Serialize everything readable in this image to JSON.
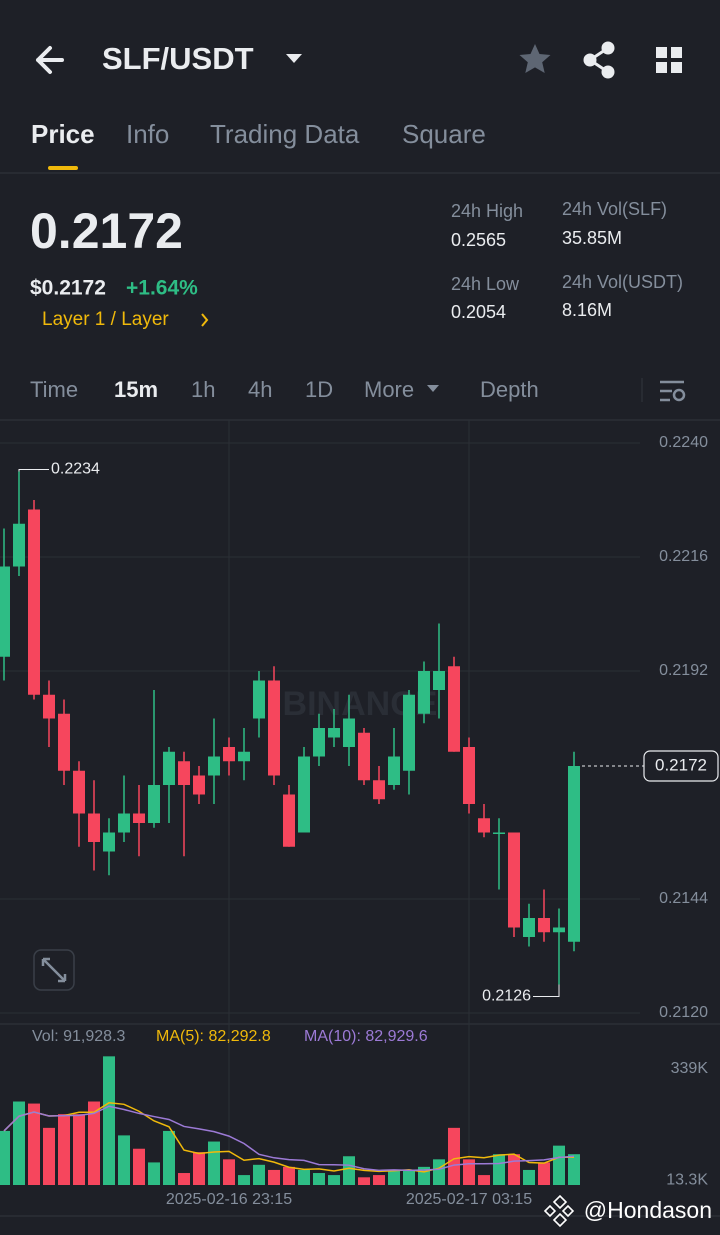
{
  "header": {
    "pair": "SLF/USDT"
  },
  "tabs": [
    "Price",
    "Info",
    "Trading Data",
    "Square"
  ],
  "ticker": {
    "last": "0.2172",
    "usd": "$0.2172",
    "change": "+1.64%",
    "tag": "Layer 1 / Layer",
    "stats": [
      {
        "label": "24h High",
        "value": "0.2565"
      },
      {
        "label": "24h Vol(SLF)",
        "value": "35.85M"
      },
      {
        "label": "24h Low",
        "value": "0.2054"
      },
      {
        "label": "24h Vol(USDT)",
        "value": "8.16M"
      }
    ]
  },
  "timeframes": [
    "Time",
    "15m",
    "1h",
    "4h",
    "1D",
    "More",
    "Depth"
  ],
  "chart_data": {
    "type": "candlestick",
    "categories": [
      null,
      null,
      null,
      null,
      null,
      null,
      null,
      null,
      null,
      null,
      null,
      null,
      null,
      null,
      null,
      "2025-02-16 23:15",
      null,
      null,
      null,
      null,
      null,
      null,
      null,
      null,
      null,
      null,
      null,
      null,
      null,
      null,
      null,
      "2025-02-17 03:15",
      null,
      null,
      null,
      null,
      null,
      null,
      null
    ],
    "open": [
      0.2195,
      0.2214,
      0.2226,
      0.2187,
      0.2183,
      0.2171,
      0.2162,
      0.2154,
      0.2158,
      0.2162,
      0.216,
      0.2168,
      0.2173,
      0.217,
      0.217,
      0.2176,
      0.2173,
      0.2182,
      0.219,
      0.2166,
      0.2158,
      0.2174,
      0.2178,
      0.2176,
      0.2179,
      0.2169,
      0.2168,
      0.2171,
      0.2183,
      0.2188,
      0.2193,
      0.2176,
      0.2161,
      0.2158,
      0.2158,
      0.2136,
      0.214,
      0.2137,
      0.2135
    ],
    "high": [
      0.2222,
      0.2234,
      0.2228,
      0.219,
      0.2186,
      0.2173,
      0.2169,
      0.2161,
      0.217,
      0.2168,
      0.2188,
      0.2176,
      0.2175,
      0.2172,
      0.2182,
      0.2178,
      0.218,
      0.2192,
      0.2193,
      0.2168,
      0.2176,
      0.2183,
      0.2184,
      0.2187,
      0.218,
      0.2172,
      0.218,
      0.2188,
      0.2194,
      0.2202,
      0.2195,
      0.2178,
      0.2164,
      0.2161,
      0.2158,
      0.2143,
      0.2146,
      0.2142,
      0.2175
    ],
    "low": [
      0.219,
      0.2212,
      0.2186,
      0.2176,
      0.2168,
      0.2155,
      0.215,
      0.2149,
      0.2156,
      0.2153,
      0.2159,
      0.216,
      0.2153,
      0.2164,
      0.2164,
      0.217,
      0.2169,
      0.2178,
      0.2168,
      0.2155,
      0.2158,
      0.2172,
      0.2176,
      0.2172,
      0.2168,
      0.2164,
      0.2167,
      0.2166,
      0.2181,
      0.2182,
      0.2175,
      0.2162,
      0.2157,
      0.2146,
      0.2136,
      0.2134,
      0.2135,
      0.2126,
      0.2133
    ],
    "close": [
      0.2214,
      0.2223,
      0.2187,
      0.2182,
      0.2171,
      0.2162,
      0.2156,
      0.2158,
      0.2162,
      0.216,
      0.2168,
      0.2175,
      0.2168,
      0.2166,
      0.2174,
      0.2173,
      0.2175,
      0.219,
      0.217,
      0.2155,
      0.2174,
      0.218,
      0.218,
      0.2182,
      0.2169,
      0.2165,
      0.2174,
      0.2187,
      0.2192,
      0.2192,
      0.2175,
      0.2164,
      0.2158,
      0.2158,
      0.2138,
      0.214,
      0.2137,
      0.2138,
      0.2172
    ],
    "up_color": "#2ebd85",
    "down_color": "#f6465d",
    "ylim": [
      0.212,
      0.224
    ],
    "yticks": [
      {
        "value": 0.224,
        "label": "0.2240"
      },
      0.2216,
      0.2192,
      0.2144,
      {
        "value": 0.212,
        "label": "0.2120"
      }
    ],
    "max_label": "0.2234",
    "min_label": "0.2126",
    "last_price_label": "0.2172",
    "logo": "BINANCE",
    "volume": {
      "values": [
        158000,
        244000,
        238000,
        167000,
        207000,
        207000,
        244000,
        376000,
        145000,
        106000,
        66000,
        158000,
        35000,
        96000,
        127000,
        75000,
        29000,
        59000,
        44000,
        53000,
        44000,
        35000,
        29000,
        84000,
        22500,
        29000,
        44000,
        44000,
        53000,
        75000,
        167000,
        75000,
        29000,
        90000,
        90000,
        44000,
        66000,
        115000,
        90000
      ],
      "ylim": [
        0,
        339000
      ],
      "yticks": [
        {
          "value": 13300,
          "label": "13.3K"
        },
        {
          "value": 339000,
          "label": "339K"
        }
      ],
      "info": {
        "vol": "Vol: 91,928.3",
        "ma5": "MA(5): 82,292.8",
        "ma10": "MA(10): 82,929.6"
      },
      "ma5_color": "#f0b90b",
      "ma10_color": "#9c7ad6"
    }
  },
  "watermark": "@Hondason"
}
